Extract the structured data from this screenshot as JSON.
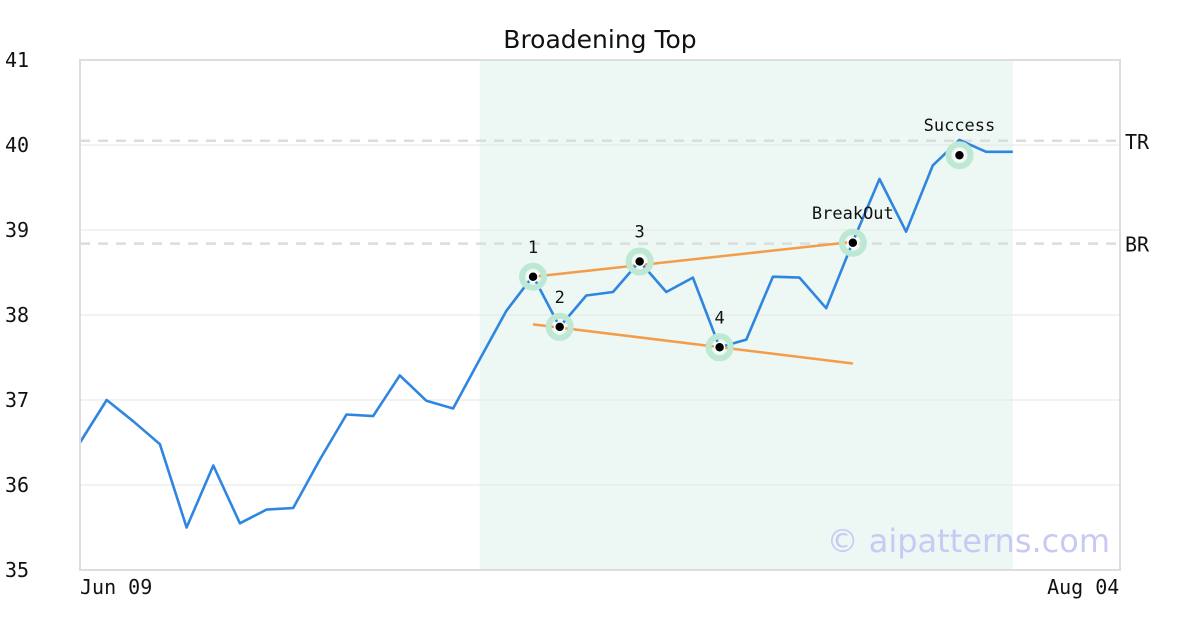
{
  "chart_data": {
    "type": "line",
    "title": "Broadening Top",
    "xlabel": "",
    "ylabel": "",
    "ylim": [
      35,
      41
    ],
    "yticks": [
      "35",
      "36",
      "37",
      "38",
      "39",
      "40",
      "41"
    ],
    "xticks": [
      {
        "label": "Jun 09",
        "index": 0
      },
      {
        "label": "Aug 04",
        "index": 39
      }
    ],
    "grid": "horizontal",
    "pattern_window": {
      "start_index": 15,
      "end_index": 35
    },
    "series": [
      {
        "values": [
          36.5,
          37.0,
          36.75,
          36.48,
          35.5,
          36.23,
          35.55,
          35.71,
          35.73,
          36.3,
          36.83,
          36.81,
          37.29,
          36.99,
          36.9,
          37.48,
          38.05,
          38.46,
          37.86,
          38.23,
          38.27,
          38.63,
          38.27,
          38.44,
          37.62,
          37.71,
          38.45,
          38.44,
          38.08,
          38.86,
          39.6,
          38.98,
          39.76,
          40.06,
          39.92,
          39.92
        ],
        "color": "#2f86e0"
      }
    ],
    "levels": [
      {
        "label": "TR",
        "value": 40.05
      },
      {
        "label": "BR",
        "value": 38.84
      }
    ],
    "trendlines": [
      {
        "from": {
          "x": 17,
          "y": 38.45
        },
        "to": {
          "x": 29,
          "y": 38.86
        },
        "color": "#f39c4a"
      },
      {
        "from": {
          "x": 17,
          "y": 37.89
        },
        "to": {
          "x": 29,
          "y": 37.43
        },
        "color": "#f39c4a"
      }
    ],
    "markers": [
      {
        "label": "1",
        "x": 17,
        "y": 38.45
      },
      {
        "label": "2",
        "x": 18,
        "y": 37.86
      },
      {
        "label": "3",
        "x": 21,
        "y": 38.63
      },
      {
        "label": "4",
        "x": 24,
        "y": 37.62
      },
      {
        "label": "BreakOut",
        "x": 29,
        "y": 38.85
      },
      {
        "label": "Success",
        "x": 33,
        "y": 39.88
      }
    ],
    "watermark": "© aipatterns.com"
  }
}
